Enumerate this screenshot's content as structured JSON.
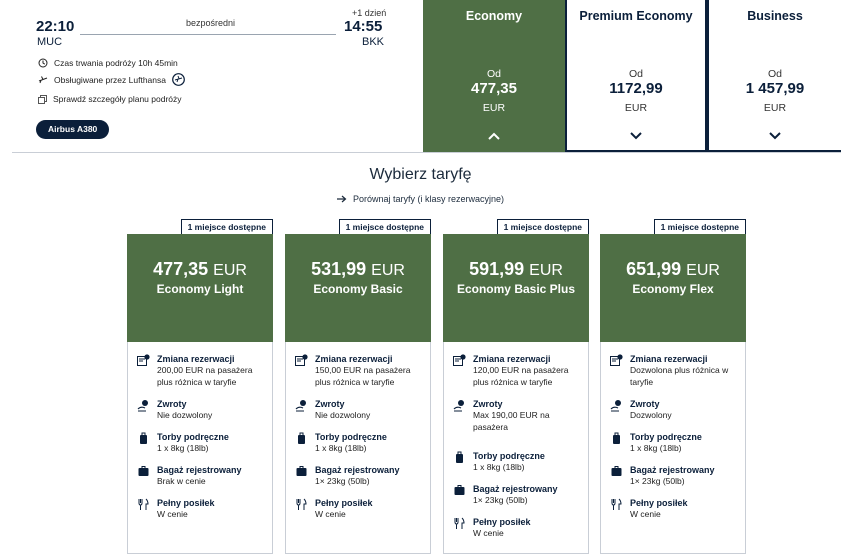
{
  "flight": {
    "depart_time": "22:10",
    "depart_code": "MUC",
    "route_type": "bezpośredni",
    "plus_day": "+1 dzień",
    "arrive_time": "14:55",
    "arrive_code": "BKK",
    "duration": "Czas trwania podróży 10h 45min",
    "operated_by": "Obsługiwane przez Lufthansa",
    "details_link": "Sprawdź szczegóły planu podróży",
    "aircraft": "Airbus A380"
  },
  "cabins": [
    {
      "name": "Economy",
      "from": "Od",
      "price": "477,35",
      "currency": "EUR",
      "selected": true
    },
    {
      "name": "Premium Economy",
      "from": "Od",
      "price": "1172,99",
      "currency": "EUR",
      "selected": false
    },
    {
      "name": "Business",
      "from": "Od",
      "price": "1 457,99",
      "currency": "EUR",
      "selected": false
    }
  ],
  "fares_section": {
    "title": "Wybierz taryfę",
    "compare_link": "Porównaj taryfy (i klasy rezerwacyjne)"
  },
  "fares": [
    {
      "badge": "1 miejsce dostępne",
      "amount": "477,35",
      "currency": "EUR",
      "name": "Economy Light",
      "features": [
        {
          "icon": "change-booking-icon",
          "title": "Zmiana rezerwacji",
          "text": "200,00 EUR na pasażera plus różnica w taryfie"
        },
        {
          "icon": "refund-icon",
          "title": "Zwroty",
          "text": "Nie dozwolony"
        },
        {
          "icon": "hand-baggage-icon",
          "title": "Torby podręczne",
          "text": "1 x 8kg (18lb)"
        },
        {
          "icon": "checked-baggage-icon",
          "title": "Bagaż rejestrowany",
          "text": "Brak w cenie"
        },
        {
          "icon": "meal-icon",
          "title": "Pełny posiłek",
          "text": "W cenie"
        }
      ]
    },
    {
      "badge": "1 miejsce dostępne",
      "amount": "531,99",
      "currency": "EUR",
      "name": "Economy Basic",
      "features": [
        {
          "icon": "change-booking-icon",
          "title": "Zmiana rezerwacji",
          "text": "150,00 EUR na pasażera plus różnica w taryfie"
        },
        {
          "icon": "refund-icon",
          "title": "Zwroty",
          "text": "Nie dozwolony"
        },
        {
          "icon": "hand-baggage-icon",
          "title": "Torby podręczne",
          "text": "1 x 8kg (18lb)"
        },
        {
          "icon": "checked-baggage-icon",
          "title": "Bagaż rejestrowany",
          "text": "1× 23kg (50lb)"
        },
        {
          "icon": "meal-icon",
          "title": "Pełny posiłek",
          "text": "W cenie"
        }
      ]
    },
    {
      "badge": "1 miejsce dostępne",
      "amount": "591,99",
      "currency": "EUR",
      "name": "Economy Basic Plus",
      "features": [
        {
          "icon": "change-booking-icon",
          "title": "Zmiana rezerwacji",
          "text": "120,00 EUR na pasażera plus różnica w taryfie"
        },
        {
          "icon": "refund-icon",
          "title": "Zwroty",
          "text": "Max 190,00 EUR na pasażera"
        },
        {
          "icon": "hand-baggage-icon",
          "title": "Torby podręczne",
          "text": "1 x 8kg (18lb)"
        },
        {
          "icon": "checked-baggage-icon",
          "title": "Bagaż rejestrowany",
          "text": "1× 23kg (50lb)"
        },
        {
          "icon": "meal-icon",
          "title": "Pełny posiłek",
          "text": "W cenie"
        }
      ]
    },
    {
      "badge": "1 miejsce dostępne",
      "amount": "651,99",
      "currency": "EUR",
      "name": "Economy Flex",
      "features": [
        {
          "icon": "change-booking-icon",
          "title": "Zmiana rezerwacji",
          "text": "Dozwolona plus różnica w taryfie"
        },
        {
          "icon": "refund-icon",
          "title": "Zwroty",
          "text": "Dozwolony"
        },
        {
          "icon": "hand-baggage-icon",
          "title": "Torby podręczne",
          "text": "1 x 8kg (18lb)"
        },
        {
          "icon": "checked-baggage-icon",
          "title": "Bagaż rejestrowany",
          "text": "1× 23kg (50lb)"
        },
        {
          "icon": "meal-icon",
          "title": "Pełny posiłek",
          "text": "W cenie"
        }
      ]
    }
  ],
  "colors": {
    "accent_green": "#4f6f45",
    "navy": "#0b1f3a"
  }
}
